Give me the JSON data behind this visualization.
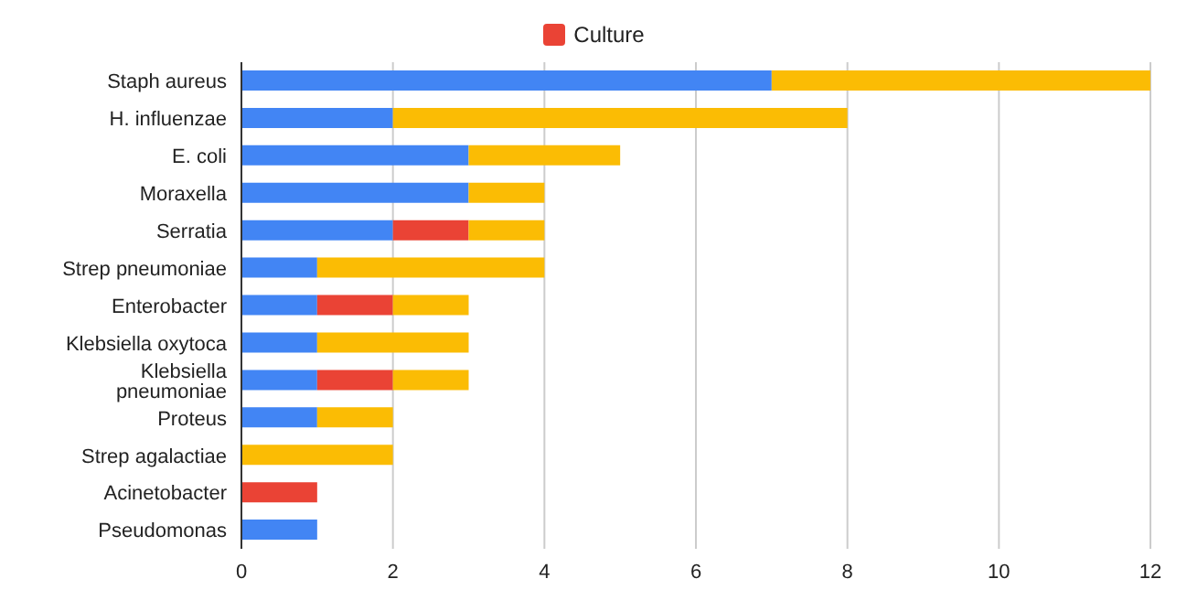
{
  "chart_data": {
    "type": "bar",
    "orientation": "horizontal",
    "stacked": true,
    "categories": [
      "Staph aureus",
      "H. influenzae",
      "E. coli",
      "Moraxella",
      "Serratia",
      "Strep pneumoniae",
      "Enterobacter",
      "Klebsiella oxytoca",
      "Klebsiella pneumoniae",
      "Proteus",
      "Strep agalactiae",
      "Acinetobacter",
      "Pseudomonas"
    ],
    "series": [
      {
        "color": "#4285f4",
        "values": [
          7,
          2,
          3,
          3,
          2,
          1,
          1,
          1,
          1,
          1,
          0,
          0,
          1
        ]
      },
      {
        "name": "Culture",
        "color": "#ea4335",
        "values": [
          0,
          0,
          0,
          0,
          1,
          0,
          1,
          0,
          1,
          0,
          0,
          1,
          0
        ]
      },
      {
        "color": "#fbbc04",
        "values": [
          5,
          6,
          2,
          1,
          1,
          3,
          1,
          2,
          1,
          1,
          2,
          0,
          0
        ]
      }
    ],
    "xlim": [
      0,
      12
    ],
    "xticks": [
      0,
      2,
      4,
      6,
      8,
      10,
      12
    ],
    "grid": "x",
    "legend": "top"
  }
}
